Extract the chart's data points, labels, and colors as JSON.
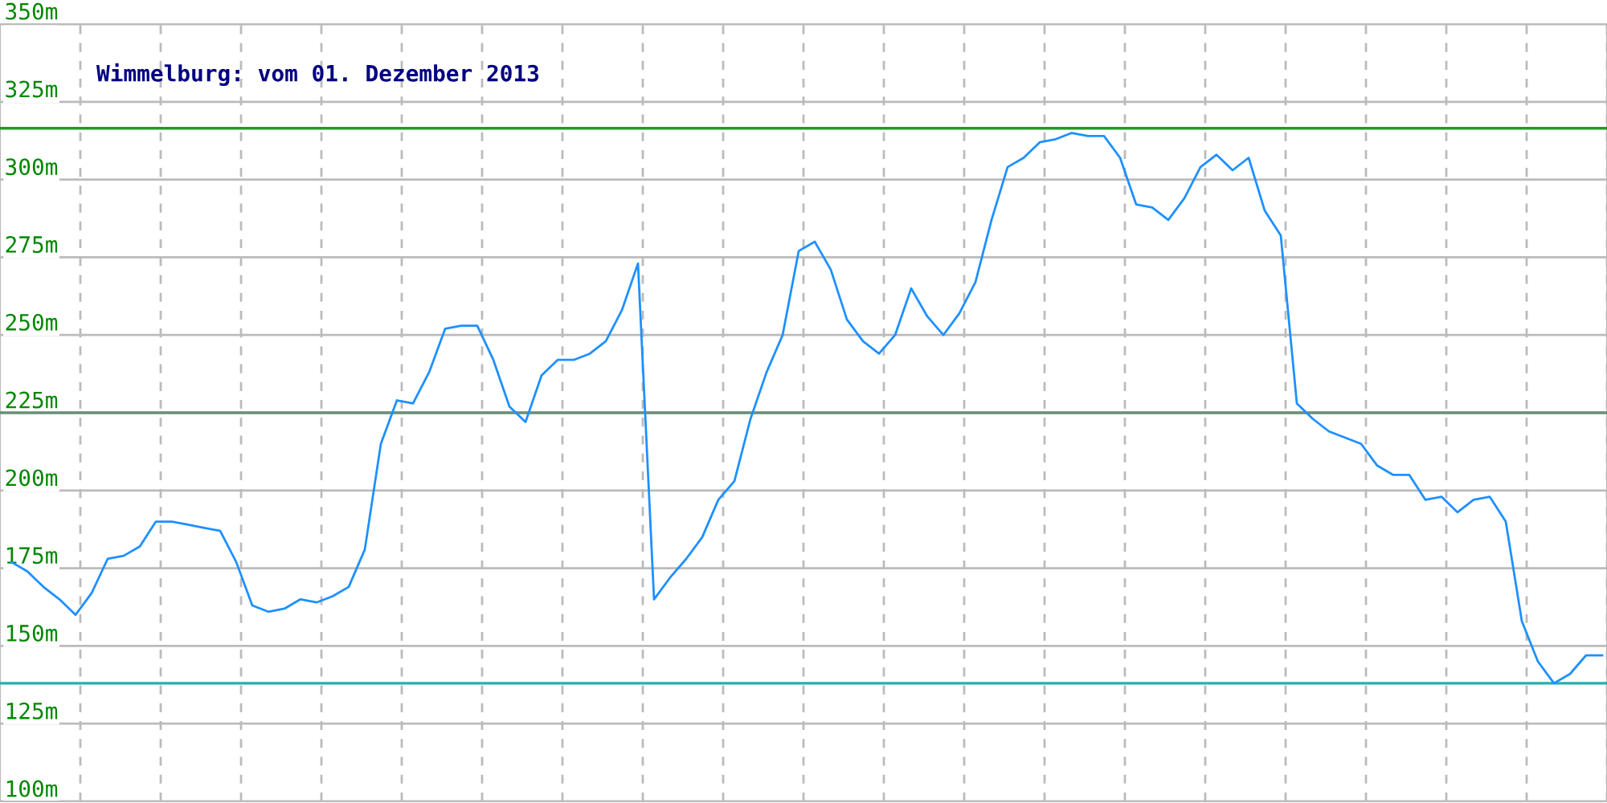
{
  "chart_data": {
    "type": "line",
    "title": "Wimmelburg: vom 01. Dezember 2013",
    "categories": [
      null,
      null,
      null,
      null,
      null,
      null,
      null,
      null,
      null,
      null,
      null,
      null,
      null,
      null,
      null,
      null,
      null,
      null,
      null,
      null,
      null,
      null,
      null,
      null,
      null,
      null,
      null,
      null,
      null,
      null,
      null,
      null,
      null,
      null,
      null,
      null,
      null,
      null,
      null,
      null,
      null,
      null,
      null,
      null,
      null,
      null,
      null,
      null,
      null,
      null,
      null,
      null,
      null,
      null,
      null,
      null,
      null,
      null,
      null,
      null,
      null,
      null,
      null,
      null,
      null,
      null,
      null,
      null,
      null,
      null,
      null,
      null,
      null,
      null,
      null,
      null,
      null,
      null,
      null,
      null,
      null,
      null,
      null,
      null,
      null,
      null,
      null,
      null,
      null,
      null,
      null,
      null,
      null,
      null,
      null,
      null,
      null,
      null,
      null,
      null
    ],
    "series": [
      {
        "color": "#1e90ff",
        "values": [
          177,
          174,
          169,
          165,
          160,
          167,
          178,
          179,
          182,
          190,
          190,
          189,
          188,
          187,
          177,
          163,
          161,
          162,
          165,
          164,
          166,
          169,
          181,
          215,
          229,
          228,
          238,
          252,
          253,
          253,
          242,
          227,
          222,
          237,
          242,
          242,
          244,
          248,
          258,
          273,
          165,
          172,
          178,
          185,
          197,
          203,
          223,
          238,
          250,
          277,
          280,
          271,
          255,
          248,
          244,
          250,
          265,
          256,
          250,
          257,
          267,
          287,
          304,
          307,
          312,
          313,
          315,
          314,
          314,
          307,
          292,
          291,
          287,
          294,
          304,
          308,
          303,
          307,
          290,
          282,
          228,
          223,
          219,
          217,
          215,
          208,
          205,
          205,
          197,
          198,
          193,
          197,
          198,
          190,
          158,
          145,
          138,
          141,
          147,
          147
        ]
      }
    ],
    "ylim": [
      100,
      350
    ],
    "yticks": [
      {
        "value": 100,
        "label": "100m"
      },
      {
        "value": 125,
        "label": "125m"
      },
      {
        "value": 150,
        "label": "150m"
      },
      {
        "value": 175,
        "label": "175m"
      },
      {
        "value": 200,
        "label": "200m"
      },
      {
        "value": 225,
        "label": "225m"
      },
      {
        "value": 250,
        "label": "250m"
      },
      {
        "value": 275,
        "label": "275m"
      },
      {
        "value": 300,
        "label": "300m"
      },
      {
        "value": 325,
        "label": "325m"
      },
      {
        "value": 350,
        "label": "350m"
      }
    ],
    "ref_lines": [
      {
        "axis": "y",
        "value": 316.5,
        "color": "#229922"
      },
      {
        "axis": "y",
        "value": 225,
        "color": "#6a8f78"
      },
      {
        "axis": "y",
        "value": 138,
        "color": "#22b0b0"
      }
    ],
    "grid": true,
    "legend": false,
    "marker": "none",
    "line_style": "solid",
    "tick_labels": "y"
  }
}
